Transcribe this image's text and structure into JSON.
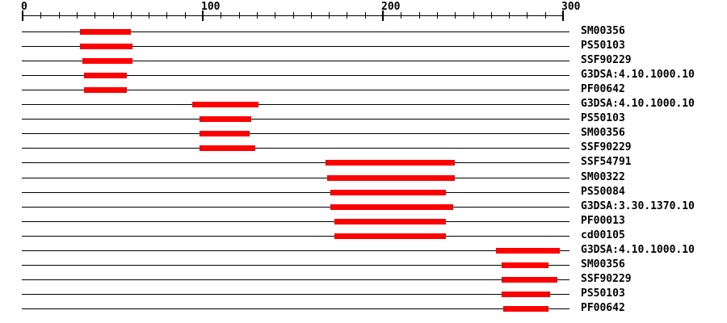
{
  "chart_data": {
    "type": "bar",
    "orientation": "horizontal",
    "title": "",
    "xlabel": "",
    "ylabel": "",
    "legend": "none",
    "grid": false,
    "axis": {
      "min": 0,
      "max": 300,
      "major_ticks": [
        0,
        100,
        200,
        300
      ],
      "major_tick_labels": [
        "0",
        "100",
        "200",
        "300"
      ],
      "minor_tick_interval": 10
    },
    "colors": {
      "bar": "#ff0000",
      "line": "#000000",
      "background": "#ffffff"
    },
    "rows": [
      {
        "label": "SM00356",
        "start": 32,
        "end": 60
      },
      {
        "label": "PS50103",
        "start": 32,
        "end": 61
      },
      {
        "label": "SSF90229",
        "start": 33,
        "end": 61
      },
      {
        "label": "G3DSA:4.10.1000.10",
        "start": 34,
        "end": 58
      },
      {
        "label": "PF00642",
        "start": 34,
        "end": 58
      },
      {
        "label": "G3DSA:4.10.1000.10",
        "start": 94,
        "end": 131
      },
      {
        "label": "PS50103",
        "start": 98,
        "end": 127
      },
      {
        "label": "SM00356",
        "start": 98,
        "end": 126
      },
      {
        "label": "SSF90229",
        "start": 98,
        "end": 129
      },
      {
        "label": "SSF54791",
        "start": 168,
        "end": 240
      },
      {
        "label": "SM00322",
        "start": 169,
        "end": 240
      },
      {
        "label": "PS50084",
        "start": 171,
        "end": 235
      },
      {
        "label": "G3DSA:3.30.1370.10",
        "start": 171,
        "end": 239
      },
      {
        "label": "PF00013",
        "start": 173,
        "end": 235
      },
      {
        "label": "cd00105",
        "start": 173,
        "end": 235
      },
      {
        "label": "G3DSA:4.10.1000.10",
        "start": 263,
        "end": 298
      },
      {
        "label": "SM00356",
        "start": 266,
        "end": 292
      },
      {
        "label": "SSF90229",
        "start": 266,
        "end": 297
      },
      {
        "label": "PS50103",
        "start": 266,
        "end": 293
      },
      {
        "label": "PF00642",
        "start": 267,
        "end": 292
      }
    ]
  }
}
